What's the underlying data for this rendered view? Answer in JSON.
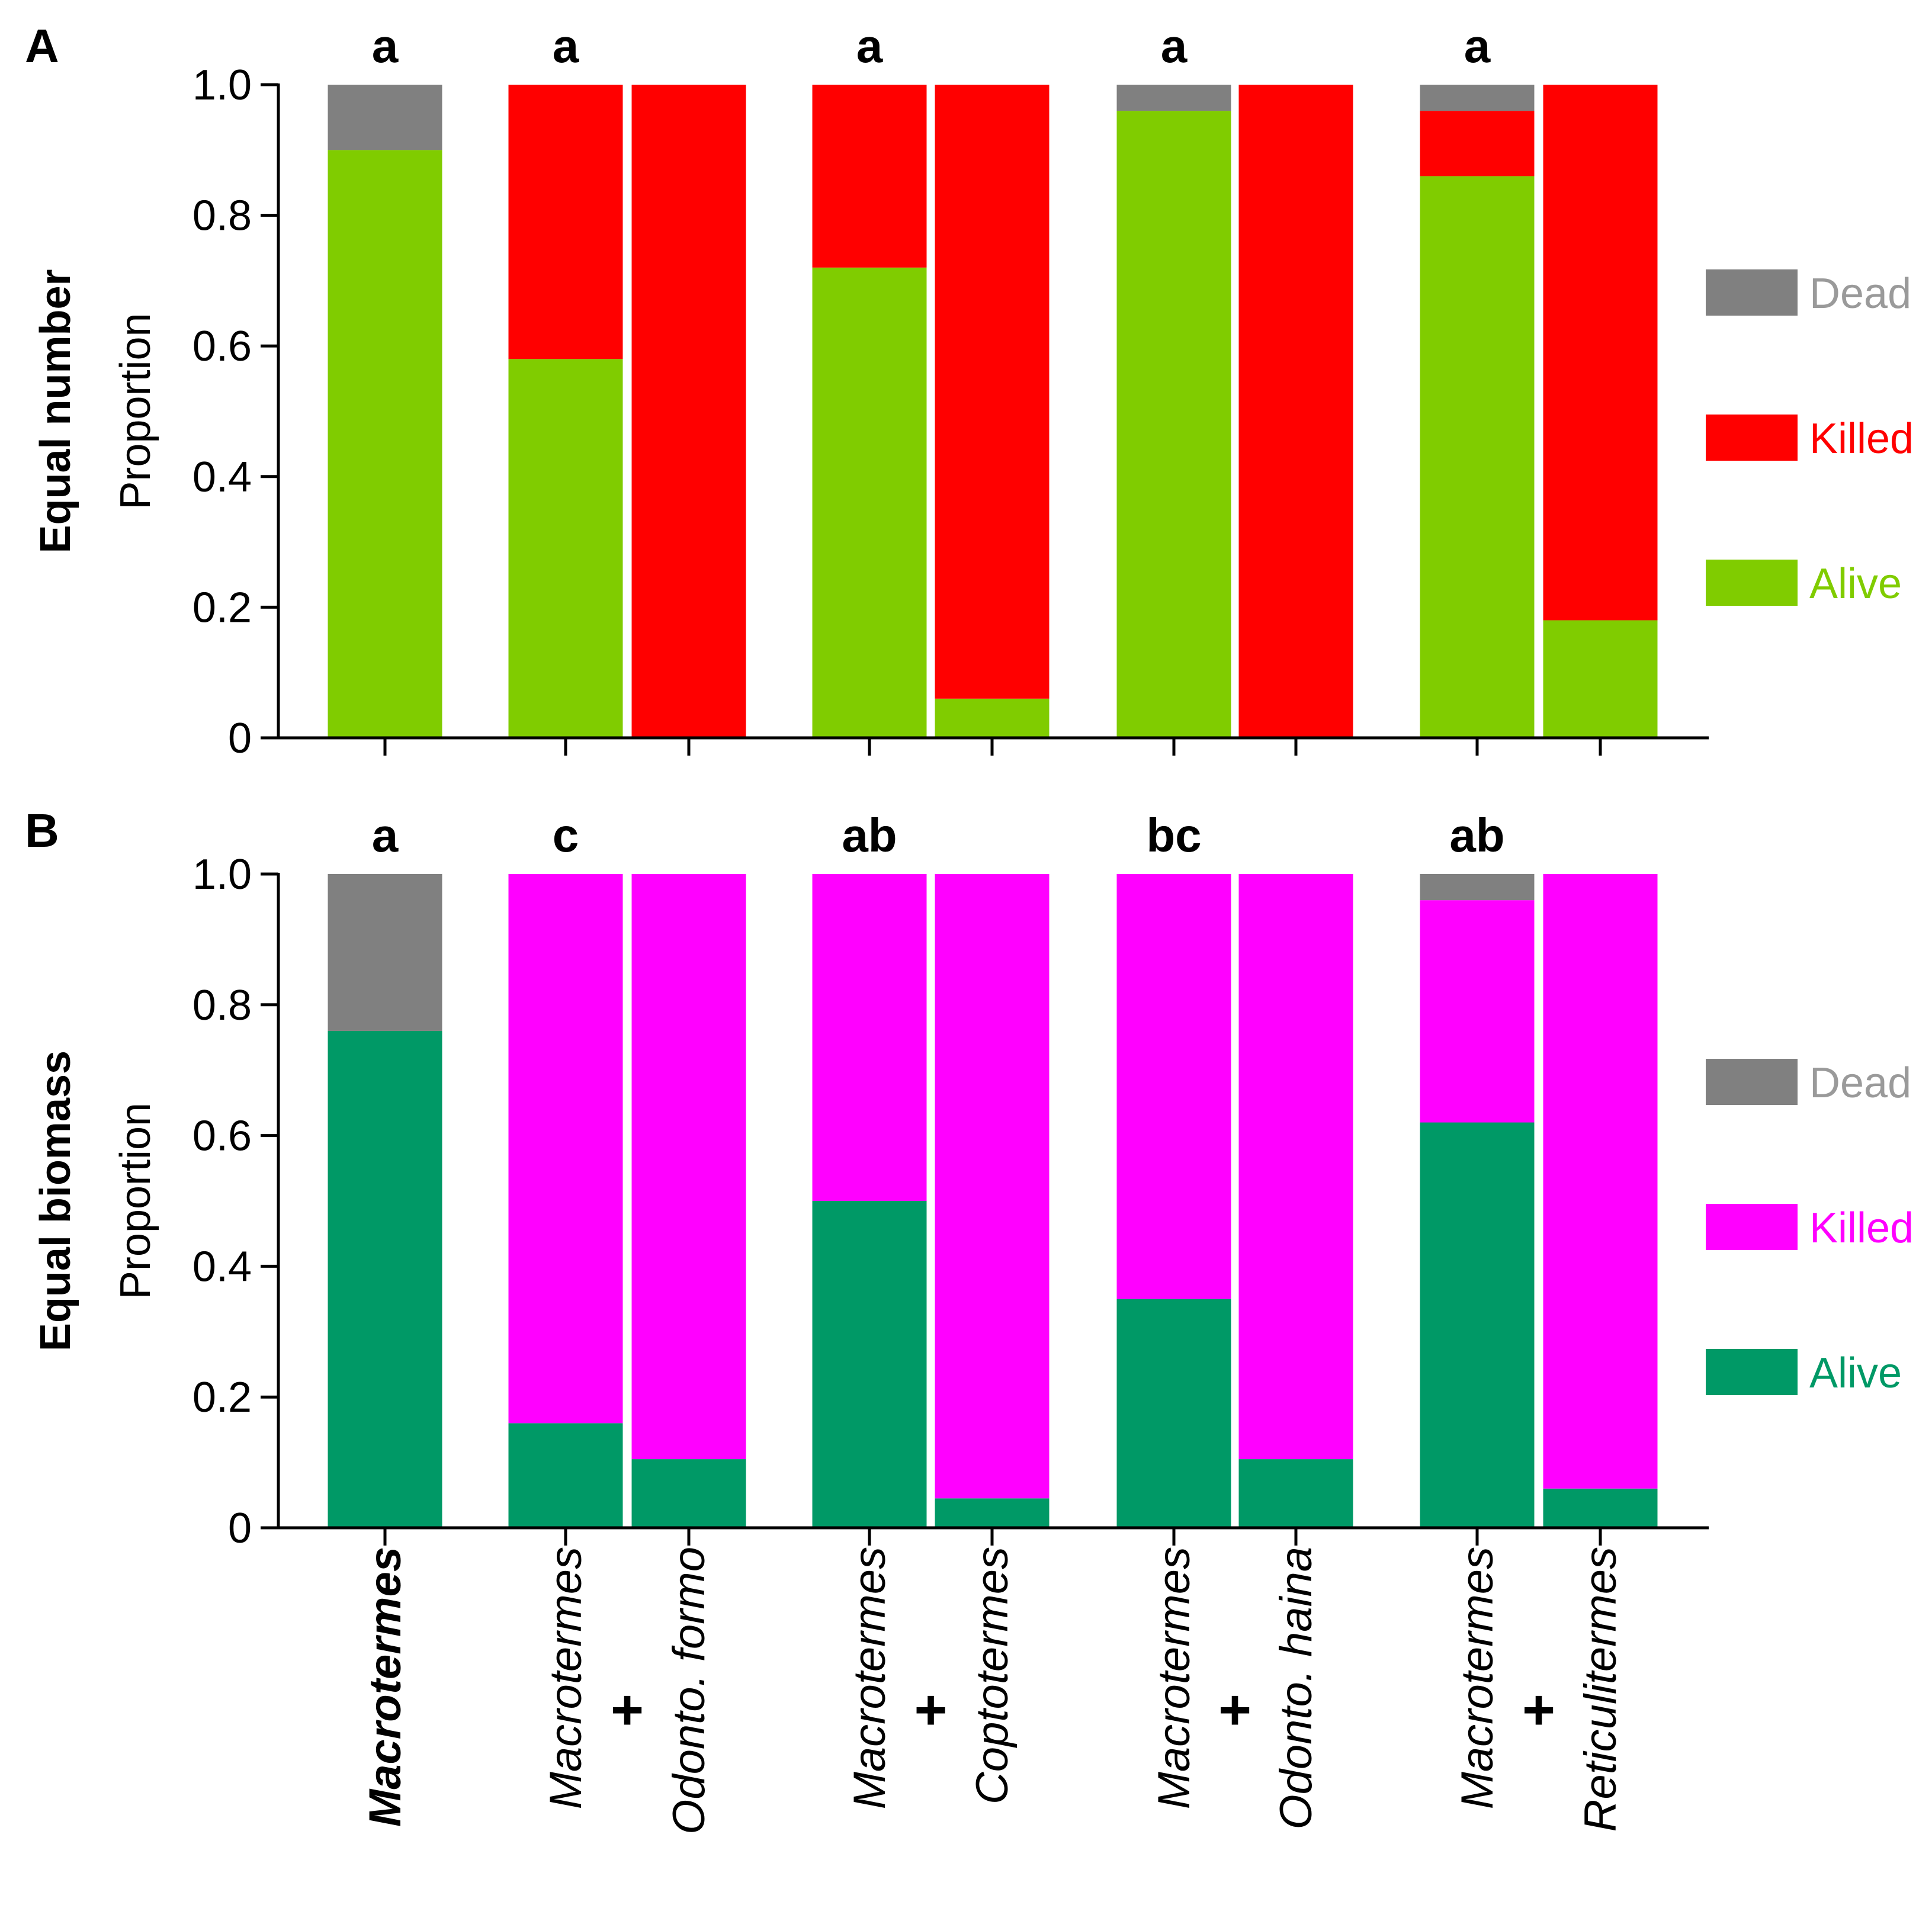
{
  "chart_data": [
    {
      "type": "bar",
      "stacked": true,
      "panel_letter": "A",
      "row_label": "Equal number",
      "ylabel": "Proportion",
      "ylim": [
        0,
        1.0
      ],
      "yticks": [
        "0",
        "0.2",
        "0.4",
        "0.6",
        "0.8",
        "1.0"
      ],
      "group_letters": [
        "a",
        "a",
        "a",
        "a",
        "a"
      ],
      "categories": [
        "Macrotermes",
        "Macrotermes",
        "Odonto. formo",
        "Macrotermes",
        "Coptotermes",
        "Macrotermes",
        "Odonto. haina",
        "Macrotermes",
        "Reticulitermes"
      ],
      "series": [
        {
          "name": "Alive",
          "color": "#80CC00",
          "values": [
            0.9,
            0.58,
            0.0,
            0.72,
            0.06,
            0.96,
            0.0,
            0.86,
            0.18
          ]
        },
        {
          "name": "Killed",
          "color": "#FF0000",
          "values": [
            0.0,
            0.42,
            1.0,
            0.28,
            0.94,
            0.0,
            1.0,
            0.1,
            0.82
          ]
        },
        {
          "name": "Dead",
          "color": "#808080",
          "values": [
            0.1,
            0.0,
            0.0,
            0.0,
            0.0,
            0.04,
            0.0,
            0.04,
            0.0
          ]
        }
      ],
      "legend": [
        {
          "label": "Dead",
          "swatch": "#808080",
          "text_color": "#9A9A9A"
        },
        {
          "label": "Killed",
          "swatch": "#FF0000",
          "text_color": "#FF0000"
        },
        {
          "label": "Alive",
          "swatch": "#80CC00",
          "text_color": "#80CC00"
        }
      ],
      "legend_position": "right"
    },
    {
      "type": "bar",
      "stacked": true,
      "panel_letter": "B",
      "row_label": "Equal biomass",
      "ylabel": "Proportion",
      "ylim": [
        0,
        1.0
      ],
      "yticks": [
        "0",
        "0.2",
        "0.4",
        "0.6",
        "0.8",
        "1.0"
      ],
      "group_letters": [
        "a",
        "c",
        "ab",
        "bc",
        "ab"
      ],
      "categories": [
        "Macrotermes",
        "Macrotermes",
        "Odonto. formo",
        "Macrotermes",
        "Coptotermes",
        "Macrotermes",
        "Odonto. haina",
        "Macrotermes",
        "Reticulitermes"
      ],
      "series": [
        {
          "name": "Alive",
          "color": "#009966",
          "values": [
            0.76,
            0.16,
            0.105,
            0.5,
            0.045,
            0.35,
            0.105,
            0.62,
            0.06
          ]
        },
        {
          "name": "Killed",
          "color": "#FF00FF",
          "values": [
            0.0,
            0.84,
            0.895,
            0.5,
            0.955,
            0.65,
            0.895,
            0.34,
            0.94
          ]
        },
        {
          "name": "Dead",
          "color": "#808080",
          "values": [
            0.24,
            0.0,
            0.0,
            0.0,
            0.0,
            0.0,
            0.0,
            0.04,
            0.0
          ]
        }
      ],
      "legend": [
        {
          "label": "Dead",
          "swatch": "#808080",
          "text_color": "#9A9A9A"
        },
        {
          "label": "Killed",
          "swatch": "#FF00FF",
          "text_color": "#FF00FF"
        },
        {
          "label": "Alive",
          "swatch": "#009966",
          "text_color": "#009966"
        }
      ],
      "legend_position": "right"
    }
  ],
  "x_axis": {
    "labels": [
      "Macrotermes",
      "Macrotermes",
      "Odonto. formo",
      "Macrotermes",
      "Coptotermes",
      "Macrotermes",
      "Odonto. haina",
      "Macrotermes",
      "Reticulitermes"
    ],
    "first_label_bold": true,
    "plus_sign": "+"
  }
}
